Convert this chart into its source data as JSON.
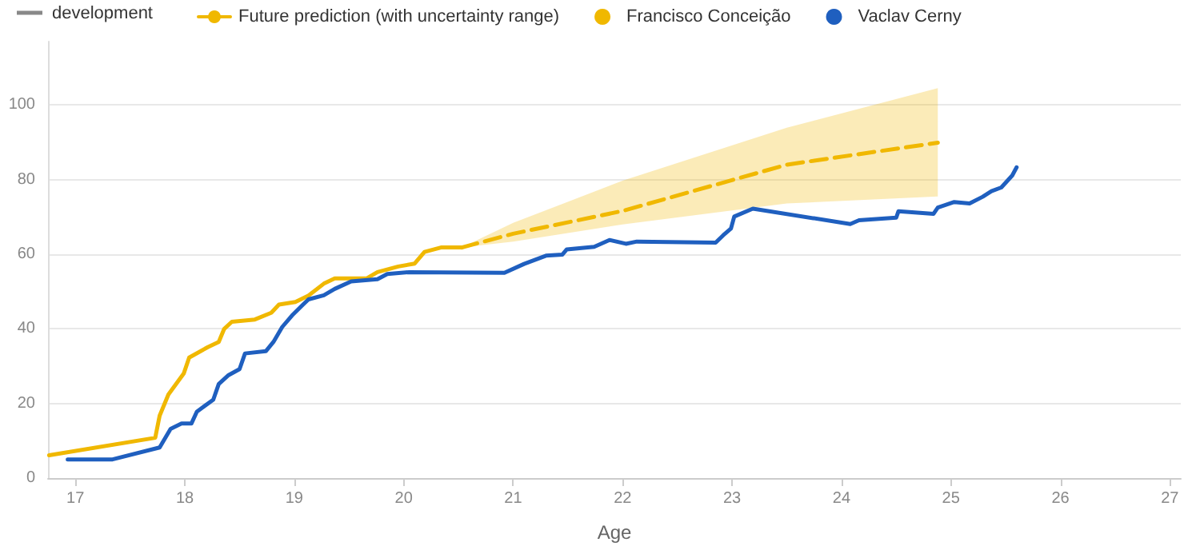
{
  "chart_data": {
    "type": "line",
    "xlabel": "Age",
    "annotations": [
      "development"
    ],
    "xlim": [
      16.75,
      27.1
    ],
    "xticks": [
      17,
      18,
      19,
      20,
      21,
      22,
      23,
      24,
      25,
      26,
      27
    ],
    "ylim": [
      0,
      117
    ],
    "yticks": [
      0,
      20,
      40,
      60,
      80,
      100
    ],
    "grid": "y",
    "legend": "top left",
    "marker": "none",
    "series": [
      {
        "name": "Future prediction (with uncertainty range)",
        "color": "#f0b800",
        "line_style": "dashed",
        "x": [
          20.53,
          21,
          22,
          23.5,
          24.88
        ],
        "values": [
          61.8,
          65.5,
          71.6,
          84,
          89.9
        ],
        "lower": [
          61.8,
          63.4,
          68,
          73.6,
          75.5
        ],
        "upper": [
          61.8,
          68.4,
          79.7,
          93.9,
          104.5
        ]
      },
      {
        "name": "Francisco Conceição",
        "color": "#f0b800",
        "line_style": "solid",
        "x": [
          16.76,
          17.73,
          17.77,
          17.85,
          17.99,
          18.04,
          18.21,
          18.31,
          18.36,
          18.43,
          18.64,
          18.79,
          18.86,
          19.01,
          19.13,
          19.27,
          19.37,
          19.66,
          19.76,
          19.95,
          20.1,
          20.19,
          20.34,
          20.53
        ],
        "values": [
          6.1,
          10.8,
          16.7,
          22.4,
          28,
          32.3,
          35.1,
          36.5,
          40,
          41.9,
          42.5,
          44.3,
          46.5,
          47.2,
          48.9,
          52.1,
          53.5,
          53.5,
          55.2,
          56.7,
          57.5,
          60.6,
          61.8,
          61.8
        ]
      },
      {
        "name": "Vaclav Cerny",
        "color": "#1f5fbf",
        "line_style": "solid",
        "x": [
          16.93,
          17.34,
          17.77,
          17.87,
          17.97,
          18.06,
          18.11,
          18.26,
          18.31,
          18.4,
          18.5,
          18.55,
          18.74,
          18.81,
          18.89,
          18.98,
          19.08,
          19.13,
          19.27,
          19.37,
          19.52,
          19.76,
          19.85,
          20.05,
          20.92,
          21.1,
          21.3,
          21.45,
          21.49,
          21.74,
          21.88,
          22.03,
          22.13,
          22.85,
          22.92,
          22.99,
          23.02,
          23.19,
          24.08,
          24.16,
          24.5,
          24.52,
          24.84,
          24.88,
          25.03,
          25.17,
          25.29,
          25.37,
          25.46,
          25.56,
          25.6
        ],
        "values": [
          5,
          5,
          8.2,
          13.2,
          14.6,
          14.6,
          17.8,
          21,
          25.2,
          27.6,
          29.2,
          33.4,
          34,
          36.5,
          40.5,
          43.6,
          46.5,
          47.9,
          49,
          50.7,
          52.7,
          53.3,
          54.7,
          55.2,
          55,
          57.4,
          59.6,
          59.9,
          61.3,
          62,
          63.8,
          62.8,
          63.4,
          63.1,
          65.1,
          66.9,
          70.1,
          72.2,
          68.1,
          69.1,
          69.8,
          71.5,
          70.8,
          72.5,
          74,
          73.6,
          75.4,
          76.9,
          77.9,
          81.1,
          83.3
        ]
      }
    ]
  }
}
